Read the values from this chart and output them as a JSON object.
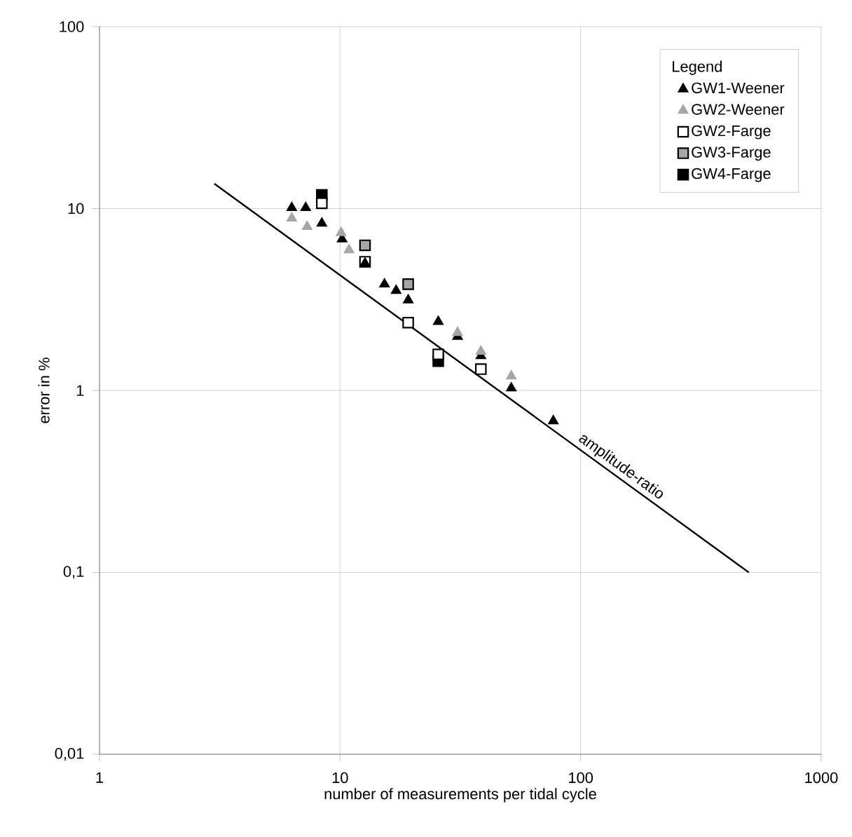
{
  "chart_data": {
    "type": "scatter",
    "xlabel": "number of measurements per tidal cycle",
    "ylabel": "error in %",
    "legend_title": "Legend",
    "log": "xy",
    "grid": true,
    "legend": "top right",
    "xlim": [
      1,
      1000
    ],
    "xticks": [
      1,
      10,
      100,
      1000
    ],
    "ylim": [
      0.01,
      100
    ],
    "yticks": [
      {
        "value": 0.01,
        "label": "0,01"
      },
      {
        "value": 0.1,
        "label": "0,1"
      },
      {
        "value": 1,
        "label": "1"
      },
      {
        "value": 10,
        "label": "10"
      },
      {
        "value": 100,
        "label": "100"
      }
    ],
    "series": [
      {
        "type": "line",
        "color": "#000000",
        "marker": "none",
        "line_style": "solid",
        "x": [
          3,
          500
        ],
        "values": [
          13.7,
          0.1
        ]
      },
      {
        "name": "GW1-Weener",
        "color": "#000000",
        "marker": "triangle",
        "x": [
          6.3,
          7.2,
          8.4,
          10.2,
          12.7,
          15.3,
          17.1,
          19.2,
          25.6,
          30.8,
          38.5,
          51.5,
          77
        ],
        "values": [
          10.1,
          10.1,
          8.3,
          6.8,
          5.0,
          3.84,
          3.54,
          3.14,
          2.39,
          1.98,
          1.55,
          1.03,
          0.68
        ]
      },
      {
        "name": "GW2-Weener",
        "color": "#a6a6a6",
        "marker": "triangle",
        "x": [
          6.3,
          7.3,
          10.1,
          10.9,
          30.8,
          38.5,
          51.5
        ],
        "values": [
          8.84,
          7.95,
          7.36,
          5.92,
          2.08,
          1.64,
          1.2
        ]
      },
      {
        "name": "GW2-Farge",
        "color": "#ffffff",
        "marker": "square",
        "x": [
          8.4,
          12.7,
          19.2,
          25.6,
          38.5
        ],
        "values": [
          10.7,
          5.1,
          2.36,
          1.58,
          1.31
        ]
      },
      {
        "name": "GW3-Farge",
        "color": "#a6a6a6",
        "marker": "square",
        "x": [
          12.7,
          19.2
        ],
        "values": [
          6.28,
          3.84
        ]
      },
      {
        "name": "GW4-Farge",
        "color": "#000000",
        "marker": "square",
        "x": [
          8.4,
          25.6
        ],
        "values": [
          11.9,
          1.45
        ]
      }
    ],
    "annotations": [
      "amplitude-ratio"
    ]
  }
}
